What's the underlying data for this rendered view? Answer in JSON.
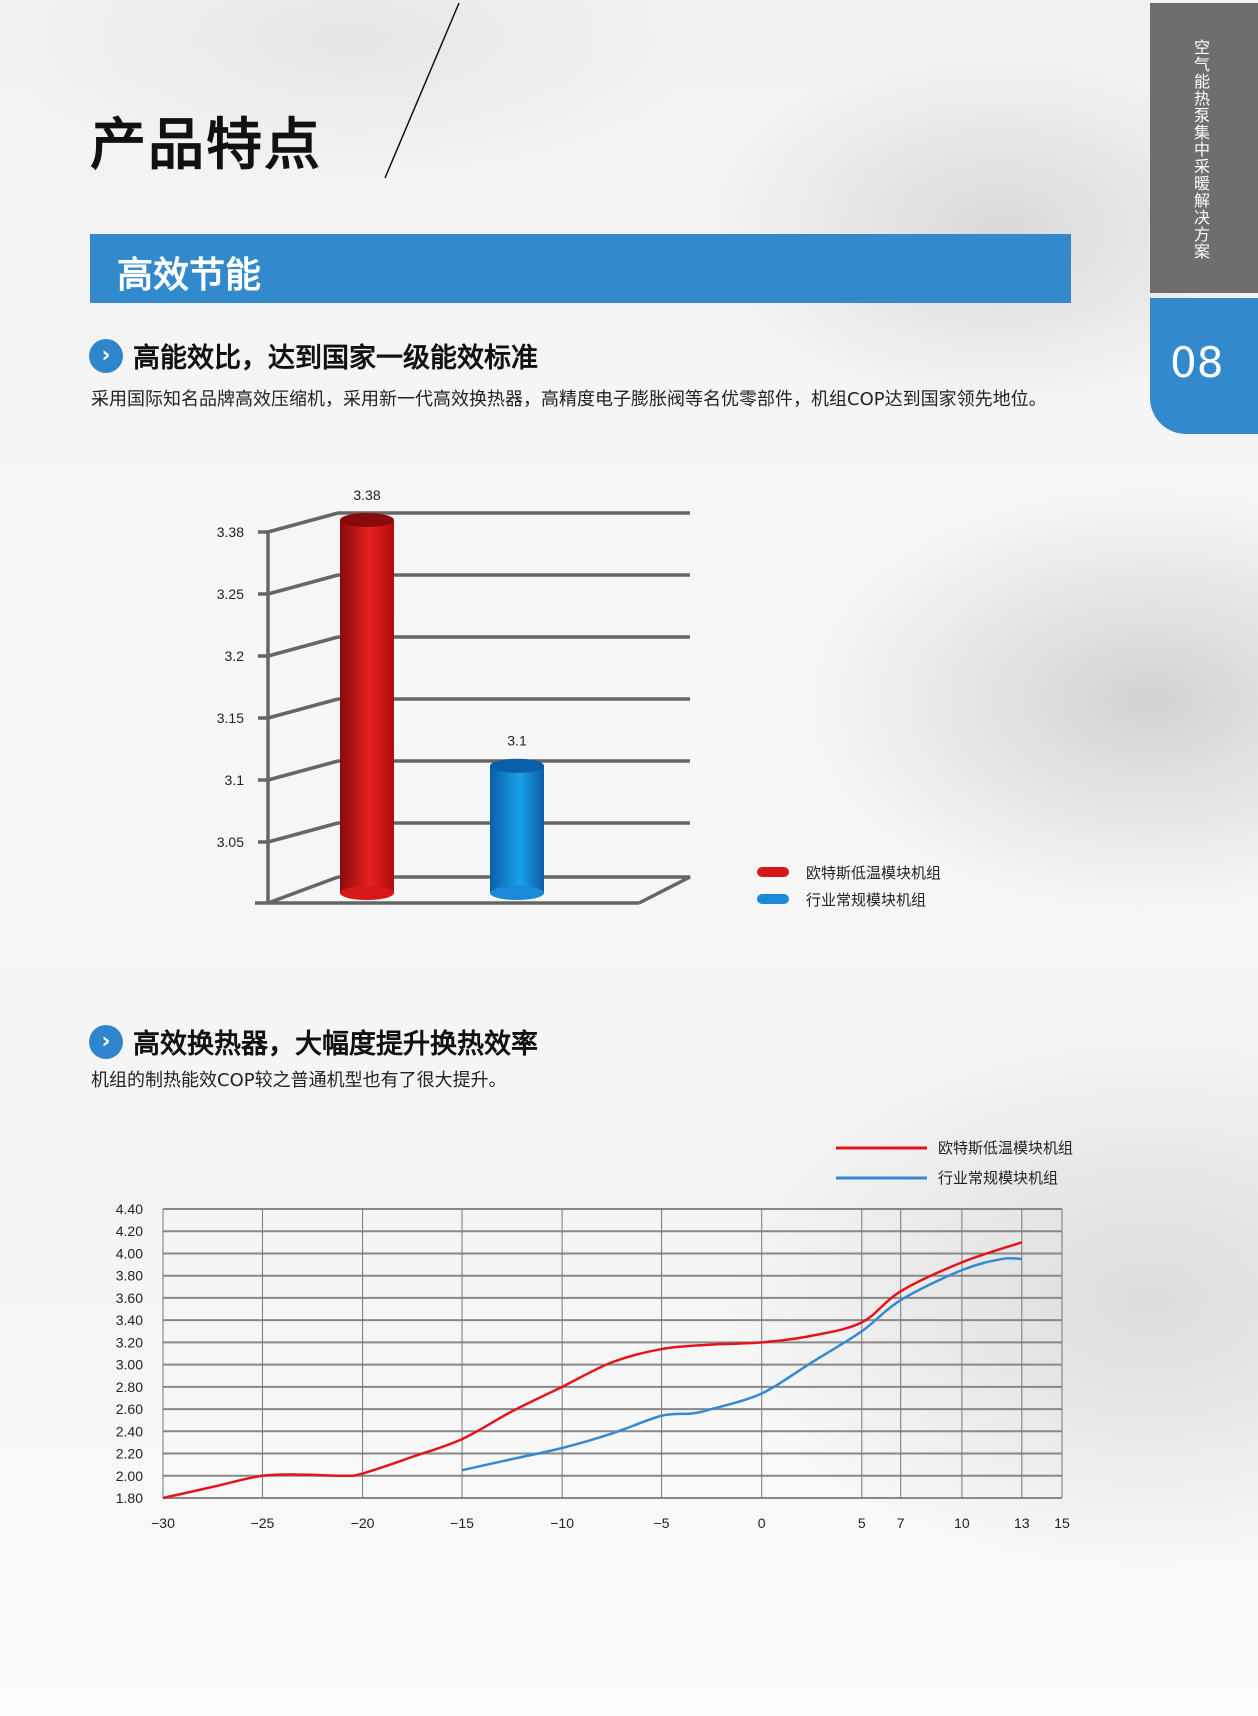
{
  "page": {
    "title": "产品特点",
    "side_tab": "空气能热泵集中采暖解决方案",
    "page_number": "08",
    "accent": "#3289cc"
  },
  "banner": {
    "title": "高效节能"
  },
  "section1": {
    "heading": "高能效比，达到国家一级能效标准",
    "text": "采用国际知名品牌高效压缩机，采用新一代高效换热器，高精度电子膨胀阀等名优零部件，机组COP达到国家领先地位。",
    "icon": "chevron-right-circle-icon"
  },
  "section2": {
    "heading": "高效换热器，大幅度提升换热效率",
    "text": "机组的制热能效COP较之普通机型也有了很大提升。",
    "icon": "chevron-right-circle-icon"
  },
  "chart_data": [
    {
      "type": "bar",
      "style": "3d-cylinder",
      "categories": [
        "欧特斯低温模块机组",
        "行业常规模块机组"
      ],
      "values": [
        3.38,
        3.1
      ],
      "data_labels": [
        "3.38",
        "3.1"
      ],
      "y_tick_labels": [
        "3.38",
        "3.25",
        "3.2",
        "3.15",
        "3.1",
        "3.05"
      ],
      "colors": [
        "#d81818",
        "#1a8ad8"
      ],
      "legend": [
        "欧特斯低温模块机组",
        "行业常规模块机组"
      ],
      "legend_position": "bottom-right",
      "grid": true
    },
    {
      "type": "line",
      "x_tick_labels": [
        "-30",
        "-25",
        "-20",
        "-15",
        "-10",
        "-5",
        "0",
        "5",
        "7",
        "10",
        "13",
        "15"
      ],
      "y_tick_labels": [
        "4.40",
        "4.20",
        "4.00",
        "3.80",
        "3.60",
        "3.40",
        "3.20",
        "3.00",
        "2.80",
        "2.60",
        "2.40",
        "2.20",
        "2.00",
        "1.80"
      ],
      "ylim": [
        1.8,
        4.4
      ],
      "xlim": [
        -30,
        15
      ],
      "grid": true,
      "legend_position": "top-right",
      "series": [
        {
          "name": "欧特斯低温模块机组",
          "color": "#e3151b",
          "points": [
            [
              -30,
              1.8
            ],
            [
              -27.5,
              1.9
            ],
            [
              -25,
              2.0
            ],
            [
              -23,
              2.01
            ],
            [
              -21,
              2.0
            ],
            [
              -20,
              2.02
            ],
            [
              -17.5,
              2.17
            ],
            [
              -15,
              2.33
            ],
            [
              -12.5,
              2.58
            ],
            [
              -10,
              2.8
            ],
            [
              -7.5,
              3.02
            ],
            [
              -5,
              3.14
            ],
            [
              -2.5,
              3.18
            ],
            [
              0,
              3.2
            ],
            [
              2.5,
              3.26
            ],
            [
              5,
              3.38
            ],
            [
              7,
              3.66
            ],
            [
              10,
              3.92
            ],
            [
              13,
              4.1
            ]
          ]
        },
        {
          "name": "行业常规模块机组",
          "color": "#3489d0",
          "points": [
            [
              -15,
              2.05
            ],
            [
              -12.5,
              2.15
            ],
            [
              -10,
              2.25
            ],
            [
              -7.5,
              2.38
            ],
            [
              -5,
              2.54
            ],
            [
              -3.5,
              2.56
            ],
            [
              -2.5,
              2.6
            ],
            [
              0,
              2.74
            ],
            [
              2.5,
              3.02
            ],
            [
              5,
              3.3
            ],
            [
              7,
              3.58
            ],
            [
              10,
              3.85
            ],
            [
              12,
              3.95
            ],
            [
              13,
              3.95
            ]
          ]
        }
      ]
    }
  ]
}
